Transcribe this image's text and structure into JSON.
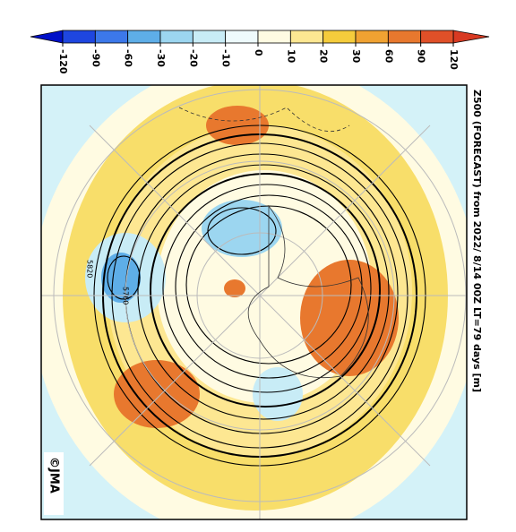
{
  "title": "Z500 (FORECAST)  from  2022/ 8/14 00Z LT=79 days  [m]",
  "credit": "©JMA",
  "contour_labels": [
    "5820",
    "5760"
  ],
  "legend": {
    "ticks": [
      -120,
      -90,
      -60,
      -30,
      -20,
      -10,
      0,
      10,
      20,
      30,
      60,
      90,
      120
    ],
    "colors": [
      "#0010c8",
      "#1e46e0",
      "#3c78ea",
      "#5eaee8",
      "#9cd6f0",
      "#c8ecf6",
      "#eefafc",
      "#fffbe2",
      "#fde792",
      "#f5cc3c",
      "#f0a232",
      "#e8782e",
      "#e05028",
      "#d83a22"
    ]
  }
}
